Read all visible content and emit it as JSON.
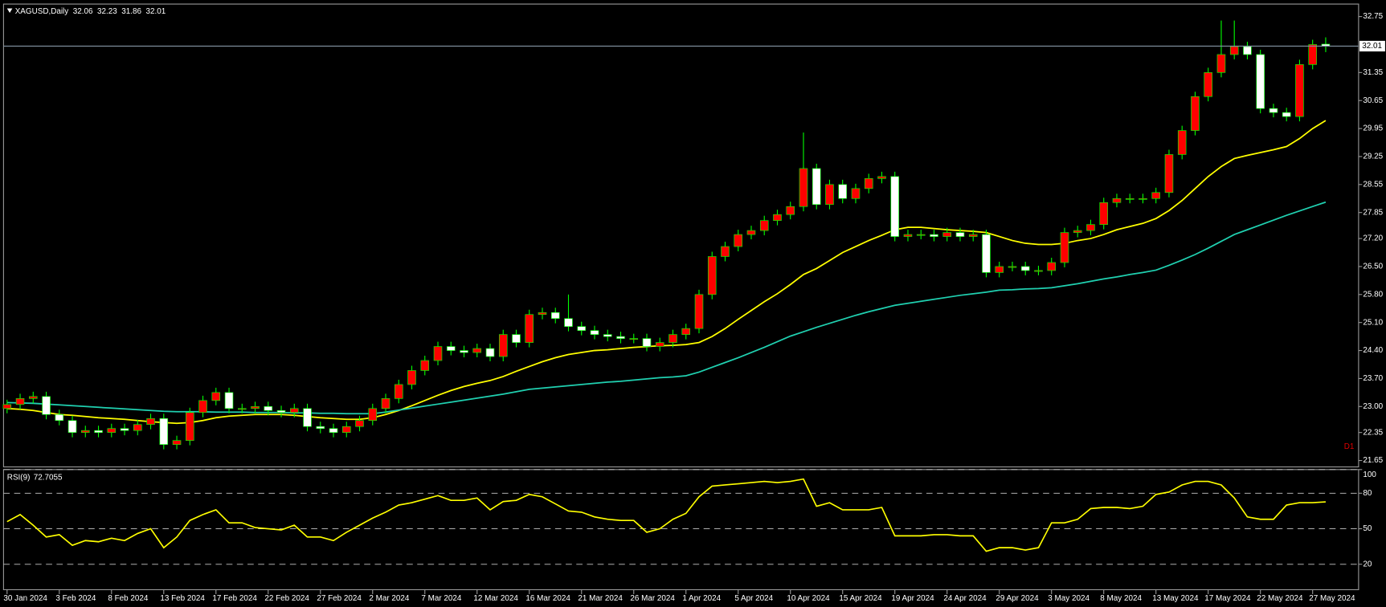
{
  "chart_data": [
    {
      "type": "candlestick",
      "symbol": "XAGUSD,Daily",
      "timeframe_label": "D1",
      "categories": [
        "30 Jan 2024",
        null,
        null,
        null,
        "3 Feb 2024",
        null,
        null,
        null,
        "8 Feb 2024",
        null,
        null,
        null,
        "13 Feb 2024",
        null,
        null,
        null,
        "17 Feb 2024",
        null,
        null,
        null,
        "22 Feb 2024",
        null,
        null,
        null,
        "27 Feb 2024",
        null,
        null,
        null,
        "2 Mar 2024",
        null,
        null,
        null,
        "7 Mar 2024",
        null,
        null,
        null,
        "12 Mar 2024",
        null,
        null,
        null,
        "16 Mar 2024",
        null,
        null,
        null,
        "21 Mar 2024",
        null,
        null,
        null,
        "26 Mar 2024",
        null,
        null,
        null,
        "1 Apr 2024",
        null,
        null,
        null,
        "5 Apr 2024",
        null,
        null,
        null,
        "10 Apr 2024",
        null,
        null,
        null,
        "15 Apr 2024",
        null,
        null,
        null,
        "19 Apr 2024",
        null,
        null,
        null,
        "24 Apr 2024",
        null,
        null,
        null,
        "29 Apr 2024",
        null,
        null,
        null,
        "3 May 2024",
        null,
        null,
        null,
        "8 May 2024",
        null,
        null,
        null,
        "13 May 2024",
        null,
        null,
        null,
        "17 May 2024",
        null,
        null,
        null,
        "22 May 2024",
        null,
        null,
        null,
        "27 May 2024",
        null
      ],
      "open": [
        22.95,
        23.05,
        23.2,
        23.25,
        22.8,
        22.65,
        22.35,
        22.4,
        22.35,
        22.45,
        22.4,
        22.55,
        22.7,
        22.05,
        22.15,
        22.85,
        23.15,
        23.35,
        22.95,
        22.95,
        23.0,
        22.9,
        22.85,
        22.95,
        22.5,
        22.45,
        22.35,
        22.5,
        22.65,
        22.95,
        23.2,
        23.55,
        23.9,
        24.15,
        24.5,
        24.4,
        24.35,
        24.45,
        24.25,
        24.8,
        24.6,
        25.3,
        25.35,
        25.2,
        25.0,
        24.9,
        24.8,
        24.75,
        24.7,
        24.7,
        24.5,
        24.6,
        24.8,
        24.95,
        25.8,
        26.75,
        27.0,
        27.3,
        27.4,
        27.65,
        27.8,
        28.0,
        28.95,
        28.05,
        28.55,
        28.2,
        28.45,
        28.7,
        28.75,
        27.25,
        27.3,
        27.3,
        27.25,
        27.35,
        27.25,
        27.3,
        26.35,
        26.5,
        26.5,
        26.4,
        26.4,
        26.6,
        27.35,
        27.4,
        27.55,
        28.1,
        28.2,
        28.2,
        28.2,
        28.35,
        29.3,
        29.9,
        30.75,
        31.35,
        31.8,
        32.0,
        31.8,
        30.45,
        30.35,
        30.25,
        31.55,
        32.06
      ],
      "high": [
        23.17,
        23.32,
        23.37,
        23.37,
        22.92,
        22.77,
        22.52,
        22.52,
        22.57,
        22.57,
        22.67,
        22.82,
        22.82,
        22.27,
        22.97,
        23.27,
        23.47,
        23.47,
        23.07,
        23.12,
        23.12,
        23.02,
        23.07,
        23.07,
        22.62,
        22.57,
        22.62,
        22.77,
        23.07,
        23.32,
        23.67,
        24.02,
        24.27,
        24.62,
        24.62,
        24.52,
        24.57,
        24.57,
        24.92,
        24.92,
        25.42,
        25.47,
        25.47,
        25.8,
        25.12,
        25.02,
        24.92,
        24.87,
        24.82,
        24.82,
        24.72,
        24.92,
        25.07,
        25.92,
        26.87,
        27.12,
        27.42,
        27.52,
        27.77,
        27.92,
        28.12,
        29.85,
        29.07,
        28.67,
        28.67,
        28.57,
        28.82,
        28.87,
        28.87,
        27.42,
        27.42,
        27.42,
        27.47,
        27.47,
        27.42,
        27.42,
        26.62,
        26.62,
        26.62,
        26.52,
        26.72,
        27.47,
        27.52,
        27.67,
        28.22,
        28.32,
        28.32,
        28.32,
        28.47,
        29.42,
        30.02,
        30.87,
        31.47,
        32.65,
        32.65,
        32.12,
        31.92,
        30.57,
        30.47,
        31.67,
        32.17,
        32.23
      ],
      "low": [
        22.83,
        22.93,
        23.08,
        22.68,
        22.53,
        22.23,
        22.23,
        22.23,
        22.23,
        22.28,
        22.28,
        22.43,
        21.93,
        21.93,
        22.03,
        22.73,
        23.03,
        22.83,
        22.83,
        22.83,
        22.78,
        22.73,
        22.73,
        22.38,
        22.33,
        22.23,
        22.23,
        22.38,
        22.53,
        22.83,
        23.08,
        23.43,
        23.78,
        24.03,
        24.28,
        24.23,
        24.23,
        24.13,
        24.13,
        24.48,
        24.48,
        25.18,
        25.08,
        24.88,
        24.78,
        24.68,
        24.63,
        24.58,
        24.58,
        24.38,
        24.38,
        24.48,
        24.68,
        24.83,
        25.68,
        26.63,
        26.88,
        27.18,
        27.28,
        27.53,
        27.68,
        27.88,
        27.93,
        27.93,
        28.08,
        28.08,
        28.33,
        28.58,
        27.13,
        27.13,
        27.18,
        27.13,
        27.13,
        27.13,
        27.13,
        26.23,
        26.23,
        26.38,
        26.28,
        26.28,
        26.28,
        26.48,
        27.23,
        27.28,
        27.43,
        27.98,
        28.08,
        28.08,
        28.08,
        28.23,
        29.18,
        29.78,
        30.63,
        31.23,
        31.68,
        31.68,
        30.33,
        30.23,
        30.13,
        30.13,
        31.43,
        31.86
      ],
      "close": [
        23.05,
        23.2,
        23.25,
        22.8,
        22.65,
        22.35,
        22.4,
        22.35,
        22.45,
        22.4,
        22.55,
        22.7,
        22.05,
        22.15,
        22.85,
        23.15,
        23.35,
        22.95,
        22.95,
        23.0,
        22.9,
        22.85,
        22.95,
        22.5,
        22.45,
        22.35,
        22.5,
        22.65,
        22.95,
        23.2,
        23.55,
        23.9,
        24.15,
        24.5,
        24.4,
        24.35,
        24.45,
        24.25,
        24.8,
        24.6,
        25.3,
        25.35,
        25.2,
        25.0,
        24.9,
        24.8,
        24.75,
        24.7,
        24.7,
        24.5,
        24.6,
        24.8,
        24.95,
        25.8,
        26.75,
        27.0,
        27.3,
        27.4,
        27.65,
        27.8,
        28.0,
        28.95,
        28.05,
        28.55,
        28.2,
        28.45,
        28.7,
        28.75,
        27.25,
        27.3,
        27.3,
        27.25,
        27.35,
        27.25,
        27.3,
        26.35,
        26.5,
        26.5,
        26.4,
        26.4,
        26.6,
        27.35,
        27.4,
        27.55,
        28.1,
        28.2,
        28.2,
        28.2,
        28.35,
        29.3,
        29.9,
        30.75,
        31.35,
        31.8,
        32.0,
        31.8,
        30.45,
        30.35,
        30.25,
        31.55,
        32.05,
        32.01
      ],
      "up_color": "#ff0000",
      "down_color": "#ffffff",
      "wick_color": "#00ff00",
      "series": [
        {
          "color": "#ffff00",
          "values": [
            22.95,
            22.93,
            22.9,
            22.85,
            22.8,
            22.78,
            22.75,
            22.72,
            22.7,
            22.68,
            22.65,
            22.62,
            22.6,
            22.58,
            22.6,
            22.65,
            22.72,
            22.76,
            22.78,
            22.8,
            22.8,
            22.8,
            22.78,
            22.75,
            22.72,
            22.7,
            22.68,
            22.68,
            22.72,
            22.8,
            22.9,
            23.02,
            23.15,
            23.28,
            23.4,
            23.5,
            23.58,
            23.65,
            23.75,
            23.88,
            24.0,
            24.12,
            24.22,
            24.3,
            24.35,
            24.4,
            24.42,
            24.45,
            24.48,
            24.5,
            24.52,
            24.53,
            24.55,
            24.6,
            24.75,
            24.95,
            25.18,
            25.4,
            25.62,
            25.82,
            26.05,
            26.3,
            26.45,
            26.65,
            26.85,
            27.0,
            27.15,
            27.28,
            27.42,
            27.48,
            27.48,
            27.45,
            27.42,
            27.4,
            27.38,
            27.35,
            27.25,
            27.15,
            27.08,
            27.05,
            27.05,
            27.08,
            27.15,
            27.2,
            27.3,
            27.42,
            27.5,
            27.58,
            27.7,
            27.9,
            28.15,
            28.45,
            28.75,
            29.0,
            29.2,
            29.28,
            29.35,
            29.42,
            29.5,
            29.7,
            29.95,
            30.15
          ]
        },
        {
          "color": "#20d0b0",
          "values": [
            23.1,
            23.09,
            23.08,
            23.06,
            23.04,
            23.02,
            23.0,
            22.98,
            22.96,
            22.94,
            22.92,
            22.9,
            22.88,
            22.87,
            22.87,
            22.87,
            22.86,
            22.86,
            22.86,
            22.85,
            22.85,
            22.85,
            22.84,
            22.84,
            22.83,
            22.83,
            22.82,
            22.82,
            22.82,
            22.86,
            22.91,
            22.96,
            23.01,
            23.06,
            23.11,
            23.16,
            23.21,
            23.26,
            23.31,
            23.37,
            23.43,
            23.46,
            23.49,
            23.52,
            23.55,
            23.58,
            23.61,
            23.63,
            23.66,
            23.69,
            23.72,
            23.74,
            23.77,
            23.86,
            23.98,
            24.1,
            24.22,
            24.35,
            24.48,
            24.62,
            24.76,
            24.87,
            24.98,
            25.08,
            25.18,
            25.28,
            25.37,
            25.45,
            25.53,
            25.58,
            25.63,
            25.68,
            25.73,
            25.78,
            25.82,
            25.86,
            25.91,
            25.92,
            25.94,
            25.95,
            25.97,
            26.02,
            26.07,
            26.13,
            26.19,
            26.24,
            26.3,
            26.35,
            26.41,
            26.53,
            26.66,
            26.8,
            26.96,
            27.13,
            27.3,
            27.42,
            27.54,
            27.66,
            27.78,
            27.89,
            28.0,
            28.11
          ]
        }
      ],
      "ylim": [
        21.49,
        33.04
      ],
      "yticks": [
        32.75,
        31.35,
        30.65,
        29.95,
        29.25,
        28.55,
        27.85,
        {
          "value": 27.2,
          "label": "27.20"
        },
        {
          "value": 26.5,
          "label": "26.50"
        },
        {
          "value": 25.8,
          "label": "25.80"
        },
        {
          "value": 25.1,
          "label": "25.10"
        },
        {
          "value": 24.4,
          "label": "24.40"
        },
        {
          "value": 23.7,
          "label": "23.70"
        },
        {
          "value": 23,
          "label": "23.00"
        },
        22.35,
        21.65
      ]
    },
    {
      "type": "line",
      "title": "RSI(9)",
      "color": "#ffff00",
      "values": [
        56,
        62,
        53,
        43,
        45,
        36,
        40,
        39,
        42,
        40,
        46,
        50,
        34,
        43,
        57,
        62,
        66,
        55,
        55,
        51,
        50,
        49,
        53,
        43,
        43,
        40,
        47,
        53,
        59,
        64,
        70,
        72,
        75,
        78,
        74,
        74,
        76,
        66,
        73,
        74,
        79,
        77,
        71,
        65,
        64,
        60,
        58,
        57,
        57,
        47,
        50,
        58,
        63,
        77,
        86,
        87,
        88,
        89,
        90,
        89,
        90,
        92,
        69,
        72,
        66,
        66,
        66,
        68,
        44,
        44,
        44,
        45,
        45,
        44,
        44,
        31,
        34,
        34,
        32,
        34,
        55,
        55,
        58,
        67,
        68,
        68,
        67,
        69,
        79,
        81,
        87,
        90,
        90,
        87,
        76,
        60,
        58,
        58,
        70,
        72,
        72,
        72.7055
      ],
      "ylim": [
        0,
        100
      ],
      "yticks": [
        100,
        80,
        50,
        20
      ]
    }
  ]
}
